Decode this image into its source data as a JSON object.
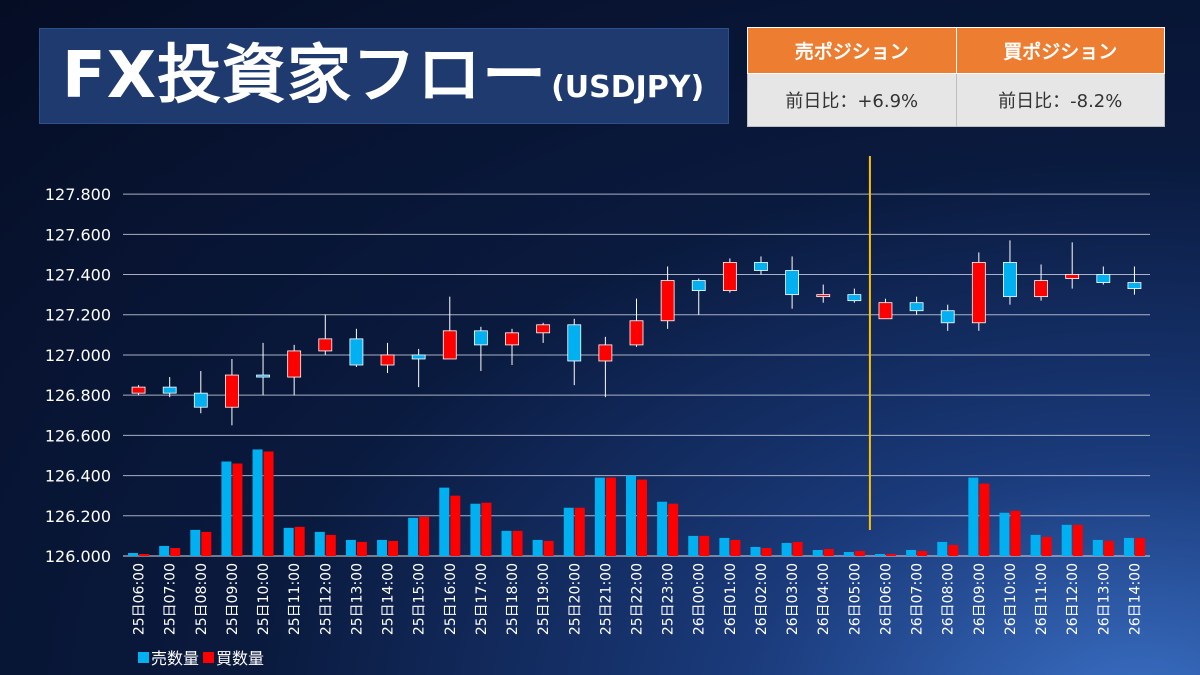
{
  "header": {
    "title": "FX投資家フロー",
    "subtitle": "(USDJPY)"
  },
  "positions": {
    "sell_header": "売ポジション",
    "buy_header": "買ポジション",
    "sell_change": "前日比：+6.9%",
    "buy_change": "前日比：-8.2%"
  },
  "legend": {
    "sell_label": "売数量",
    "buy_label": "買数量"
  },
  "colors": {
    "sell": "#00b0f0",
    "buy": "#ff0000",
    "divider": "#ffc000",
    "header_bg": "#ed7d31"
  },
  "chart_data": {
    "type": "candlestick+bar",
    "ylim": [
      126.0,
      127.9
    ],
    "yticks": [
      "126.000",
      "126.200",
      "126.400",
      "126.600",
      "126.800",
      "127.000",
      "127.200",
      "127.400",
      "127.600",
      "127.800"
    ],
    "grid": true,
    "legend_position": "bottom-left",
    "divider_after_index": 23,
    "categories": [
      "25日06:00",
      "25日07:00",
      "25日08:00",
      "25日09:00",
      "25日10:00",
      "25日11:00",
      "25日12:00",
      "25日13:00",
      "25日14:00",
      "25日15:00",
      "25日16:00",
      "25日17:00",
      "25日18:00",
      "25日19:00",
      "25日20:00",
      "25日21:00",
      "25日22:00",
      "25日23:00",
      "26日00:00",
      "26日01:00",
      "26日02:00",
      "26日03:00",
      "26日04:00",
      "26日05:00",
      "26日06:00",
      "26日07:00",
      "26日08:00",
      "26日09:00",
      "26日10:00",
      "26日11:00",
      "26日12:00",
      "26日13:00",
      "26日14:00"
    ],
    "candles": [
      {
        "o": 126.81,
        "h": 126.85,
        "l": 126.8,
        "c": 126.84
      },
      {
        "o": 126.84,
        "h": 126.89,
        "l": 126.79,
        "c": 126.81
      },
      {
        "o": 126.81,
        "h": 126.92,
        "l": 126.71,
        "c": 126.74
      },
      {
        "o": 126.74,
        "h": 126.98,
        "l": 126.65,
        "c": 126.9
      },
      {
        "o": 126.9,
        "h": 127.06,
        "l": 126.8,
        "c": 126.89
      },
      {
        "o": 126.89,
        "h": 127.05,
        "l": 126.8,
        "c": 127.02
      },
      {
        "o": 127.02,
        "h": 127.2,
        "l": 127.0,
        "c": 127.08
      },
      {
        "o": 127.08,
        "h": 127.13,
        "l": 126.94,
        "c": 126.95
      },
      {
        "o": 126.95,
        "h": 127.06,
        "l": 126.91,
        "c": 127.0
      },
      {
        "o": 127.0,
        "h": 127.03,
        "l": 126.84,
        "c": 126.98
      },
      {
        "o": 126.98,
        "h": 127.29,
        "l": 126.98,
        "c": 127.12
      },
      {
        "o": 127.12,
        "h": 127.14,
        "l": 126.92,
        "c": 127.05
      },
      {
        "o": 127.05,
        "h": 127.13,
        "l": 126.95,
        "c": 127.11
      },
      {
        "o": 127.11,
        "h": 127.16,
        "l": 127.06,
        "c": 127.15
      },
      {
        "o": 127.15,
        "h": 127.18,
        "l": 126.85,
        "c": 126.97
      },
      {
        "o": 126.97,
        "h": 127.09,
        "l": 126.79,
        "c": 127.05
      },
      {
        "o": 127.05,
        "h": 127.28,
        "l": 127.04,
        "c": 127.17
      },
      {
        "o": 127.17,
        "h": 127.44,
        "l": 127.13,
        "c": 127.37
      },
      {
        "o": 127.37,
        "h": 127.38,
        "l": 127.2,
        "c": 127.32
      },
      {
        "o": 127.32,
        "h": 127.48,
        "l": 127.31,
        "c": 127.46
      },
      {
        "o": 127.46,
        "h": 127.49,
        "l": 127.4,
        "c": 127.42
      },
      {
        "o": 127.42,
        "h": 127.49,
        "l": 127.23,
        "c": 127.3
      },
      {
        "o": 127.3,
        "h": 127.35,
        "l": 127.26,
        "c": 127.3
      },
      {
        "o": 127.3,
        "h": 127.33,
        "l": 127.26,
        "c": 127.27
      },
      {
        "o": 127.18,
        "h": 127.28,
        "l": 127.18,
        "c": 127.26
      },
      {
        "o": 127.26,
        "h": 127.29,
        "l": 127.2,
        "c": 127.22
      },
      {
        "o": 127.22,
        "h": 127.25,
        "l": 127.12,
        "c": 127.16
      },
      {
        "o": 127.16,
        "h": 127.51,
        "l": 127.12,
        "c": 127.46
      },
      {
        "o": 127.46,
        "h": 127.57,
        "l": 127.25,
        "c": 127.29
      },
      {
        "o": 127.29,
        "h": 127.45,
        "l": 127.27,
        "c": 127.37
      },
      {
        "o": 127.38,
        "h": 127.56,
        "l": 127.33,
        "c": 127.4
      },
      {
        "o": 127.4,
        "h": 127.44,
        "l": 127.35,
        "c": 127.36
      },
      {
        "o": 127.36,
        "h": 127.44,
        "l": 127.3,
        "c": 127.33
      }
    ],
    "series": [
      {
        "name": "売数量",
        "values": [
          126.015,
          126.05,
          126.13,
          126.47,
          126.53,
          126.14,
          126.12,
          126.08,
          126.08,
          126.19,
          126.34,
          126.26,
          126.125,
          126.08,
          126.24,
          126.39,
          126.4,
          126.27,
          126.1,
          126.09,
          126.045,
          126.065,
          126.03,
          126.02,
          126.01,
          126.03,
          126.07,
          126.39,
          126.215,
          126.105,
          126.155,
          126.08,
          126.09
        ]
      },
      {
        "name": "買数量",
        "values": [
          126.01,
          126.04,
          126.12,
          126.46,
          126.52,
          126.145,
          126.105,
          126.07,
          126.075,
          126.195,
          126.3,
          126.265,
          126.125,
          126.075,
          126.24,
          126.39,
          126.38,
          126.26,
          126.1,
          126.08,
          126.04,
          126.07,
          126.035,
          126.025,
          126.01,
          126.025,
          126.055,
          126.36,
          126.225,
          126.095,
          126.155,
          126.075,
          126.09
        ]
      }
    ]
  }
}
